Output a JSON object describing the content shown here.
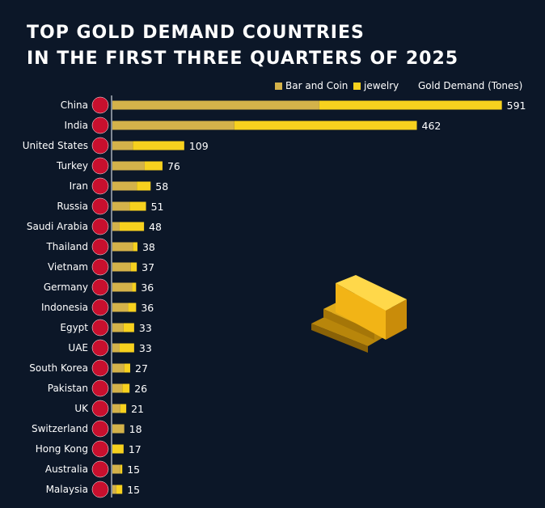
{
  "chart_data": {
    "type": "bar",
    "orientation": "horizontal",
    "stacked": true,
    "title": "TOP GOLD DEMAND COUNTRIES",
    "subtitle": "IN THE FIRST THREE QUARTERS OF 2025",
    "value_label": "Gold Demand (Tones)",
    "legend_placement": "top-right",
    "categories": [
      "China",
      "India",
      "United States",
      "Turkey",
      "Iran",
      "Russia",
      "Saudi Arabia",
      "Thailand",
      "Vietnam",
      "Germany",
      "Indonesia",
      "Egypt",
      "UAE",
      "South Korea",
      "Pakistan",
      "UK",
      "Switzerland",
      "Hong Kong",
      "Australia",
      "Malaysia"
    ],
    "totals": [
      591,
      462,
      109,
      76,
      58,
      51,
      48,
      38,
      37,
      36,
      36,
      33,
      33,
      27,
      26,
      21,
      18,
      17,
      15,
      15
    ],
    "series": [
      {
        "name": "Bar and Coin",
        "color": "#d4b24a",
        "values": [
          314,
          185,
          31,
          49,
          37,
          26,
          11,
          31,
          28,
          30,
          24,
          17,
          11,
          18,
          15,
          12,
          18,
          0,
          12,
          6
        ]
      },
      {
        "name": "jewelry",
        "color": "#f7d11e",
        "values": [
          277,
          277,
          78,
          27,
          21,
          25,
          37,
          7,
          9,
          6,
          12,
          16,
          22,
          9,
          11,
          9,
          0,
          17,
          3,
          9
        ]
      }
    ],
    "grid": false
  }
}
